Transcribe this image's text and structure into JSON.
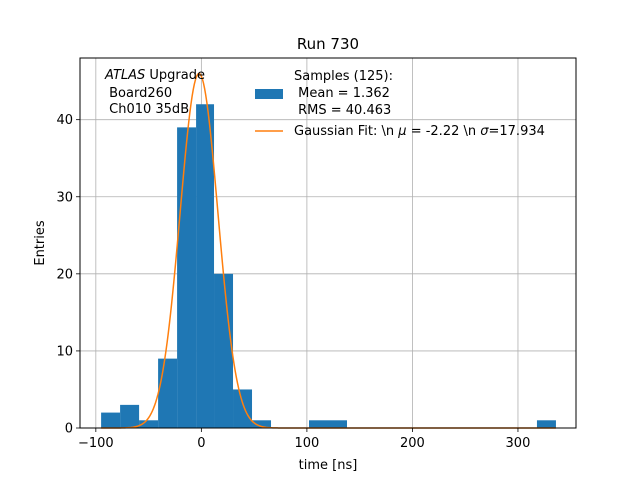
{
  "chart_data": {
    "type": "bar",
    "title": "Run 730",
    "xlabel": "time [ns]",
    "ylabel": "Entries",
    "xlim": [
      -115,
      355
    ],
    "ylim": [
      0,
      48
    ],
    "xticks": [
      -100,
      0,
      100,
      200,
      300
    ],
    "yticks": [
      0,
      10,
      20,
      30,
      40
    ],
    "grid": true,
    "legend_position": "top-right",
    "colors": {
      "histogram": "#1f77b4",
      "fit": "#ff7f0e"
    },
    "histogram": {
      "name": "Samples (125):\n Mean = 1.362\n RMS = 40.463",
      "bins": [
        {
          "x0": -95,
          "x1": -77,
          "count": 2
        },
        {
          "x0": -77,
          "x1": -59,
          "count": 3
        },
        {
          "x0": -59,
          "x1": -41,
          "count": 1
        },
        {
          "x0": -41,
          "x1": -23,
          "count": 9
        },
        {
          "x0": -23,
          "x1": -5,
          "count": 39
        },
        {
          "x0": -5,
          "x1": 12,
          "count": 42
        },
        {
          "x0": 12,
          "x1": 30,
          "count": 20
        },
        {
          "x0": 30,
          "x1": 48,
          "count": 5
        },
        {
          "x0": 48,
          "x1": 66,
          "count": 1
        },
        {
          "x0": 66,
          "x1": 84,
          "count": 0
        },
        {
          "x0": 84,
          "x1": 102,
          "count": 0
        },
        {
          "x0": 102,
          "x1": 120,
          "count": 1
        },
        {
          "x0": 120,
          "x1": 138,
          "count": 1
        },
        {
          "x0": 318,
          "x1": 336,
          "count": 1
        }
      ]
    },
    "fit": {
      "name": "Gaussian Fit: \\n μ = -2.22 \\n σ=17.934",
      "mu": -2.22,
      "sigma": 17.934,
      "amplitude": 46,
      "x_range": [
        -95,
        336
      ]
    },
    "annotation": {
      "line1_italic": "ATLAS",
      "line1_rest": " Upgrade",
      "line2": " Board260",
      "line3": " Ch010 35dB"
    },
    "legend": {
      "samples_line1": "Samples (125):",
      "samples_line2": " Mean = 1.362",
      "samples_line3": " RMS = 40.463",
      "fit_prefix": "Gaussian Fit: \\n ",
      "fit_mu_symbol": "μ",
      "fit_mid": " = -2.22 \\n ",
      "fit_sigma_symbol": "σ",
      "fit_suffix": "=17.934"
    }
  }
}
